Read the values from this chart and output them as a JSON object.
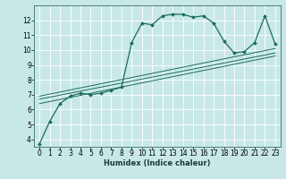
{
  "xlabel": "Humidex (Indice chaleur)",
  "background_color": "#c8e8e8",
  "line_color": "#1a6b5a",
  "xlim": [
    -0.5,
    23.5
  ],
  "ylim": [
    3.5,
    13.0
  ],
  "yticks": [
    4,
    5,
    6,
    7,
    8,
    9,
    10,
    11,
    12
  ],
  "xticks": [
    0,
    1,
    2,
    3,
    4,
    5,
    6,
    7,
    8,
    9,
    10,
    11,
    12,
    13,
    14,
    15,
    16,
    17,
    18,
    19,
    20,
    21,
    22,
    23
  ],
  "curve_x": [
    0,
    1,
    2,
    3,
    4,
    5,
    6,
    7,
    8,
    9,
    10,
    11,
    12,
    13,
    14,
    15,
    16,
    17,
    18,
    19,
    20,
    21,
    22,
    23
  ],
  "curve_y": [
    3.7,
    5.2,
    6.4,
    6.9,
    7.1,
    7.0,
    7.1,
    7.3,
    7.5,
    10.5,
    11.8,
    11.7,
    12.3,
    12.4,
    12.4,
    12.2,
    12.3,
    11.8,
    10.6,
    9.8,
    9.9,
    10.5,
    12.3,
    10.4
  ],
  "linear_lines": [
    {
      "x": [
        0,
        23
      ],
      "y": [
        6.4,
        9.6
      ]
    },
    {
      "x": [
        0,
        23
      ],
      "y": [
        6.7,
        9.8
      ]
    },
    {
      "x": [
        0,
        23
      ],
      "y": [
        6.9,
        10.1
      ]
    }
  ],
  "xlabel_fontsize": 6,
  "tick_fontsize": 5.5,
  "grid_color": "#ffffff",
  "spine_color": "#3a7060"
}
